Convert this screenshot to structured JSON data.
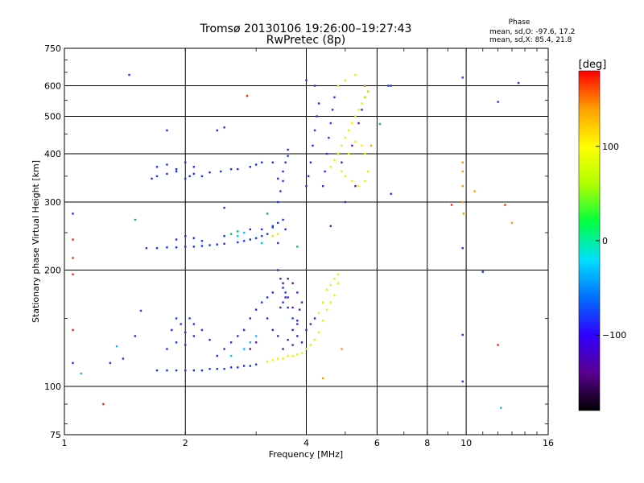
{
  "header": {
    "title_line1": "Tromsø 20130106 19:26:00–19:27:43",
    "title_line2": "RwPretec (8p)",
    "phase_title": "Phase",
    "phase_line1": "mean, sd,O: -97.6, 17.2",
    "phase_line2": "mean, sd,X: 85.4, 21.8"
  },
  "colorbar": {
    "label": "[deg]",
    "range": [
      -180,
      180
    ],
    "ticks": [
      "100",
      "0",
      "−100"
    ],
    "tick_values": [
      100,
      0,
      -100
    ],
    "colors": [
      "#000000",
      "#5a0090",
      "#3000ff",
      "#0070ff",
      "#00e0ff",
      "#00ff40",
      "#b0ff00",
      "#ffff00",
      "#ffa000",
      "#ff0000"
    ]
  },
  "chart_data": {
    "type": "scatter",
    "title": "Tromsø 20130106 19:26:00–19:27:43",
    "subtitle": "RwPretec (8p)",
    "xlabel": "Frequency [MHz]",
    "ylabel": "Stationary phase Virtual Height [km]",
    "xscale": "log",
    "yscale": "log",
    "xlim": [
      1,
      16
    ],
    "ylim": [
      75,
      750
    ],
    "grid": true,
    "x_ticks": [
      1,
      2,
      4,
      6,
      8,
      10,
      16
    ],
    "x_tick_labels": [
      "1",
      "2",
      "4",
      "6",
      "8",
      "10",
      "16"
    ],
    "x_grid": [
      2,
      4,
      6,
      8,
      10
    ],
    "y_ticks": [
      75,
      100,
      200,
      300,
      400,
      500,
      600,
      750
    ],
    "y_tick_labels": [
      "75",
      "100",
      "200",
      "300",
      "400",
      "500",
      "600",
      "750"
    ],
    "y_grid": [
      100,
      200,
      300,
      400,
      500,
      600
    ],
    "series": [
      {
        "color": "#1530ff",
        "points": [
          [
            1.7,
            110
          ],
          [
            1.8,
            110
          ],
          [
            1.9,
            110
          ],
          [
            2.0,
            110
          ],
          [
            2.1,
            110
          ],
          [
            2.2,
            110
          ],
          [
            2.3,
            111
          ],
          [
            2.4,
            111
          ],
          [
            2.5,
            111
          ],
          [
            2.6,
            112
          ],
          [
            2.7,
            112
          ],
          [
            2.8,
            113
          ],
          [
            2.9,
            113
          ],
          [
            3.0,
            114
          ],
          [
            1.8,
            125
          ],
          [
            1.9,
            130
          ],
          [
            2.0,
            128
          ],
          [
            2.1,
            135
          ],
          [
            2.2,
            140
          ],
          [
            2.3,
            132
          ],
          [
            1.85,
            140
          ],
          [
            1.95,
            145
          ],
          [
            2.0,
            138
          ],
          [
            2.05,
            150
          ],
          [
            1.9,
            150
          ],
          [
            2.1,
            145
          ],
          [
            2.4,
            120
          ],
          [
            2.5,
            125
          ],
          [
            2.6,
            130
          ],
          [
            2.7,
            135
          ],
          [
            2.8,
            140
          ],
          [
            2.9,
            150
          ],
          [
            3.0,
            158
          ],
          [
            3.1,
            165
          ],
          [
            3.2,
            170
          ],
          [
            3.3,
            175
          ],
          [
            1.6,
            228
          ],
          [
            1.7,
            228
          ],
          [
            1.8,
            229
          ],
          [
            1.9,
            229
          ],
          [
            2.0,
            230
          ],
          [
            2.1,
            230
          ],
          [
            2.2,
            231
          ],
          [
            2.3,
            232
          ],
          [
            2.4,
            233
          ],
          [
            2.5,
            234
          ],
          [
            2.7,
            236
          ],
          [
            2.8,
            238
          ],
          [
            2.9,
            240
          ],
          [
            3.0,
            242
          ],
          [
            3.1,
            245
          ],
          [
            3.2,
            248
          ],
          [
            1.9,
            240
          ],
          [
            2.0,
            245
          ],
          [
            2.1,
            242
          ],
          [
            2.2,
            238
          ],
          [
            2.5,
            245
          ],
          [
            2.9,
            255
          ],
          [
            3.1,
            255
          ],
          [
            3.3,
            258
          ],
          [
            3.4,
            265
          ],
          [
            1.65,
            345
          ],
          [
            1.7,
            350
          ],
          [
            1.8,
            355
          ],
          [
            1.9,
            360
          ],
          [
            2.0,
            345
          ],
          [
            2.05,
            350
          ],
          [
            2.1,
            355
          ],
          [
            2.2,
            350
          ],
          [
            2.3,
            358
          ],
          [
            2.45,
            360
          ],
          [
            2.6,
            365
          ],
          [
            2.7,
            365
          ],
          [
            2.9,
            370
          ],
          [
            3.0,
            375
          ],
          [
            3.1,
            380
          ],
          [
            3.3,
            380
          ],
          [
            1.7,
            370
          ],
          [
            1.8,
            375
          ],
          [
            1.9,
            365
          ],
          [
            2.0,
            380
          ],
          [
            2.1,
            370
          ],
          [
            1.3,
            115
          ],
          [
            1.4,
            118
          ],
          [
            1.5,
            135
          ],
          [
            1.55,
            157
          ],
          [
            1.8,
            460
          ],
          [
            2.4,
            460
          ],
          [
            2.5,
            468
          ],
          [
            1.45,
            640
          ],
          [
            3.4,
            300
          ],
          [
            3.45,
            320
          ],
          [
            3.5,
            340
          ],
          [
            3.5,
            360
          ],
          [
            3.55,
            380
          ],
          [
            3.6,
            395
          ],
          [
            3.6,
            410
          ],
          [
            3.4,
            345
          ],
          [
            3.5,
            270
          ],
          [
            3.55,
            255
          ],
          [
            3.4,
            235
          ],
          [
            3.3,
            260
          ],
          [
            3.45,
            190
          ],
          [
            3.5,
            180
          ],
          [
            3.55,
            175
          ],
          [
            3.6,
            170
          ],
          [
            3.5,
            165
          ],
          [
            3.6,
            160
          ],
          [
            3.7,
            150
          ],
          [
            3.8,
            145
          ],
          [
            4.0,
            330
          ],
          [
            4.05,
            350
          ],
          [
            4.1,
            380
          ],
          [
            4.15,
            420
          ],
          [
            4.2,
            460
          ],
          [
            4.25,
            500
          ],
          [
            4.3,
            540
          ],
          [
            4.0,
            620
          ],
          [
            4.2,
            600
          ],
          [
            4.4,
            330
          ],
          [
            4.45,
            360
          ],
          [
            4.5,
            400
          ],
          [
            4.55,
            440
          ],
          [
            4.6,
            480
          ],
          [
            4.65,
            520
          ],
          [
            4.7,
            560
          ],
          [
            5.6,
            600
          ],
          [
            5.7,
            580
          ],
          [
            6.4,
            600
          ],
          [
            6.5,
            600
          ],
          [
            6.5,
            315
          ],
          [
            9.8,
            630
          ],
          [
            9.8,
            228
          ],
          [
            9.8,
            136
          ],
          [
            9.8,
            103
          ],
          [
            11.0,
            198
          ],
          [
            12.0,
            545
          ],
          [
            13.5,
            610
          ],
          [
            2.5,
            290
          ],
          [
            1.05,
            115
          ],
          [
            1.05,
            280
          ]
        ]
      },
      {
        "color": "#5014b0",
        "points": [
          [
            3.5,
            125
          ],
          [
            3.6,
            132
          ],
          [
            3.7,
            140
          ],
          [
            3.8,
            148
          ],
          [
            3.85,
            158
          ],
          [
            3.9,
            165
          ],
          [
            3.8,
            175
          ],
          [
            3.7,
            185
          ],
          [
            3.6,
            190
          ],
          [
            3.5,
            185
          ],
          [
            3.4,
            200
          ],
          [
            3.7,
            128
          ],
          [
            3.8,
            135
          ],
          [
            3.9,
            130
          ],
          [
            4.0,
            140
          ],
          [
            4.1,
            145
          ],
          [
            4.2,
            150
          ],
          [
            3.45,
            160
          ],
          [
            3.55,
            170
          ],
          [
            3.7,
            160
          ],
          [
            3.2,
            150
          ],
          [
            3.3,
            140
          ],
          [
            3.4,
            135
          ],
          [
            3.0,
            130
          ],
          [
            2.9,
            125
          ],
          [
            4.6,
            260
          ],
          [
            4.8,
            400
          ],
          [
            4.9,
            380
          ],
          [
            5.2,
            420
          ],
          [
            5.0,
            300
          ],
          [
            5.3,
            330
          ],
          [
            5.5,
            520
          ],
          [
            5.6,
            560
          ],
          [
            5.4,
            480
          ]
        ]
      },
      {
        "color": "#e8f000",
        "points": [
          [
            3.2,
            116
          ],
          [
            3.3,
            117
          ],
          [
            3.4,
            118
          ],
          [
            3.5,
            118
          ],
          [
            3.6,
            120
          ],
          [
            3.7,
            120
          ],
          [
            3.8,
            121
          ],
          [
            3.9,
            122
          ],
          [
            4.0,
            125
          ],
          [
            4.1,
            128
          ],
          [
            4.2,
            132
          ],
          [
            4.3,
            138
          ],
          [
            4.4,
            148
          ],
          [
            4.5,
            158
          ],
          [
            4.6,
            165
          ],
          [
            4.7,
            172
          ],
          [
            4.8,
            185
          ],
          [
            4.5,
            178
          ],
          [
            4.6,
            183
          ],
          [
            4.7,
            190
          ],
          [
            4.8,
            195
          ],
          [
            4.4,
            165
          ],
          [
            4.3,
            155
          ],
          [
            4.6,
            370
          ],
          [
            4.7,
            385
          ],
          [
            4.8,
            400
          ],
          [
            4.9,
            420
          ],
          [
            5.0,
            440
          ],
          [
            5.1,
            460
          ],
          [
            5.2,
            480
          ],
          [
            5.3,
            500
          ],
          [
            5.4,
            520
          ],
          [
            5.5,
            540
          ],
          [
            5.6,
            560
          ],
          [
            5.7,
            580
          ],
          [
            4.9,
            360
          ],
          [
            5.0,
            350
          ],
          [
            5.2,
            340
          ],
          [
            5.4,
            330
          ],
          [
            5.6,
            340
          ],
          [
            5.7,
            360
          ],
          [
            5.6,
            400
          ],
          [
            5.5,
            420
          ],
          [
            5.3,
            430
          ],
          [
            5.1,
            400
          ],
          [
            4.8,
            600
          ],
          [
            5.0,
            620
          ],
          [
            5.3,
            640
          ],
          [
            3.3,
            245
          ],
          [
            3.4,
            248
          ]
        ]
      },
      {
        "color": "#f0a000",
        "points": [
          [
            9.8,
            330
          ],
          [
            9.8,
            300
          ],
          [
            9.85,
            280
          ],
          [
            9.8,
            380
          ],
          [
            9.8,
            360
          ],
          [
            13.0,
            265
          ],
          [
            4.4,
            105
          ],
          [
            4.9,
            125
          ],
          [
            5.6,
            600
          ],
          [
            5.8,
            420
          ],
          [
            10.5,
            320
          ]
        ]
      },
      {
        "color": "#ff2000",
        "points": [
          [
            1.05,
            215
          ],
          [
            1.05,
            195
          ],
          [
            1.05,
            240
          ],
          [
            1.05,
            140
          ],
          [
            1.25,
            90
          ],
          [
            2.85,
            565
          ],
          [
            9.2,
            295
          ],
          [
            12.5,
            295
          ],
          [
            12.0,
            128
          ]
        ]
      },
      {
        "color": "#00c060",
        "points": [
          [
            1.5,
            270
          ],
          [
            3.2,
            280
          ],
          [
            3.8,
            230
          ],
          [
            6.1,
            478
          ],
          [
            2.7,
            252
          ],
          [
            2.6,
            248
          ]
        ]
      },
      {
        "color": "#00c0ff",
        "points": [
          [
            2.6,
            120
          ],
          [
            2.8,
            125
          ],
          [
            2.9,
            130
          ],
          [
            3.0,
            135
          ],
          [
            2.7,
            245
          ],
          [
            2.8,
            250
          ],
          [
            1.1,
            108
          ],
          [
            1.35,
            127
          ],
          [
            12.2,
            88
          ],
          [
            3.1,
            235
          ]
        ]
      }
    ]
  }
}
